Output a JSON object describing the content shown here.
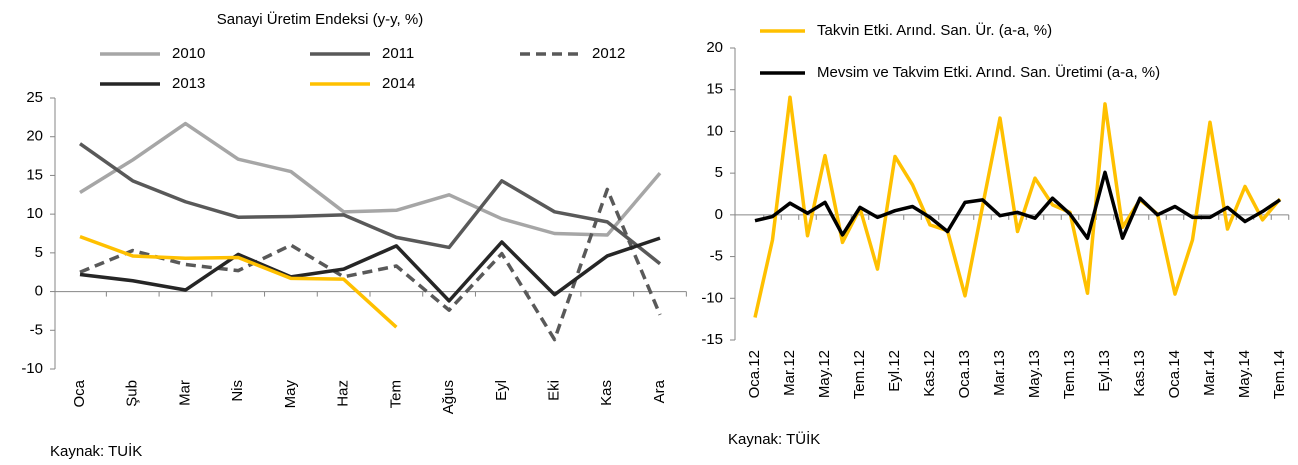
{
  "chart_data": [
    {
      "type": "line",
      "title": "Sanayi Üretim Endeksi (y-y, %)",
      "source": "Kaynak: TUİK",
      "categories": [
        "Oca",
        "Şub",
        "Mar",
        "Nis",
        "May",
        "Haz",
        "Tem",
        "Ağus",
        "Eyl",
        "Eki",
        "Kas",
        "Ara"
      ],
      "ylim": [
        -10,
        25
      ],
      "yticks": [
        -10,
        -5,
        0,
        5,
        10,
        15,
        20,
        25
      ],
      "series": [
        {
          "name": "2010",
          "color": "#a6a6a6",
          "values": [
            12.8,
            17,
            21.7,
            17.1,
            15.5,
            10.3,
            10.5,
            12.5,
            9.4,
            7.5,
            7.3,
            15.3
          ]
        },
        {
          "name": "2011",
          "color": "#595959",
          "values": [
            19.1,
            14.3,
            11.6,
            9.6,
            9.7,
            9.9,
            7.0,
            5.7,
            14.3,
            10.3,
            9.0,
            3.6
          ]
        },
        {
          "name": "2012",
          "color": "#595959",
          "style": "dashed",
          "values": [
            2.5,
            5.3,
            3.5,
            2.7,
            6.0,
            1.9,
            3.3,
            -2.4,
            4.9,
            -6.2,
            13.2,
            -3.0
          ]
        },
        {
          "name": "2013",
          "color": "#262626",
          "values": [
            2.2,
            1.4,
            0.2,
            4.8,
            1.9,
            2.9,
            5.9,
            -1.2,
            6.4,
            -0.4,
            4.6,
            6.9
          ]
        },
        {
          "name": "2014",
          "color": "#ffc000",
          "values": [
            7.1,
            4.6,
            4.3,
            4.4,
            1.7,
            1.6,
            -4.6,
            null,
            null,
            null,
            null,
            null
          ]
        }
      ]
    },
    {
      "type": "line",
      "source": "Kaynak: TÜİK",
      "categories": [
        "Oca.12",
        null,
        "Mar.12",
        null,
        "May.12",
        null,
        "Tem.12",
        null,
        "Eyl.12",
        null,
        "Kas.12",
        null,
        "Oca.13",
        null,
        "Mar.13",
        null,
        "May.13",
        null,
        "Tem.13",
        null,
        "Eyl.13",
        null,
        "Kas.13",
        null,
        "Oca.14",
        null,
        "Mar.14",
        null,
        "May.14",
        null,
        "Tem.14"
      ],
      "ylim": [
        -15,
        20
      ],
      "yticks": [
        -15,
        -10,
        -5,
        0,
        5,
        10,
        15,
        20
      ],
      "series": [
        {
          "name": "Takvin Etki. Arınd. San. Ür. (a-a, %)",
          "color": "#ffc000",
          "values": [
            -12.3,
            -3,
            14.1,
            -2.5,
            7.1,
            -3.3,
            0.8,
            -6.5,
            7.0,
            3.6,
            -1.2,
            -1.9,
            -9.7,
            1.0,
            11.6,
            -2.0,
            4.4,
            1.2,
            0.3,
            -9.4,
            13.3,
            -1.5,
            1.8,
            0.1,
            -9.5,
            -3.0,
            11.1,
            -1.7,
            3.4,
            -0.6,
            1.9
          ]
        },
        {
          "name": "Mevsim ve Takvim Etki. Arınd. San. Üretimi (a-a, %)",
          "color": "#000000",
          "values": [
            -0.7,
            -0.2,
            1.4,
            0.2,
            1.5,
            -2.4,
            0.9,
            -0.3,
            0.5,
            1.0,
            -0.3,
            -2.0,
            1.5,
            1.8,
            -0.1,
            0.3,
            -0.4,
            2.0,
            0.1,
            -2.8,
            5.1,
            -2.8,
            2.0,
            0.0,
            1.0,
            -0.3,
            -0.3,
            0.9,
            -0.8,
            0.4,
            1.8
          ]
        }
      ]
    }
  ]
}
